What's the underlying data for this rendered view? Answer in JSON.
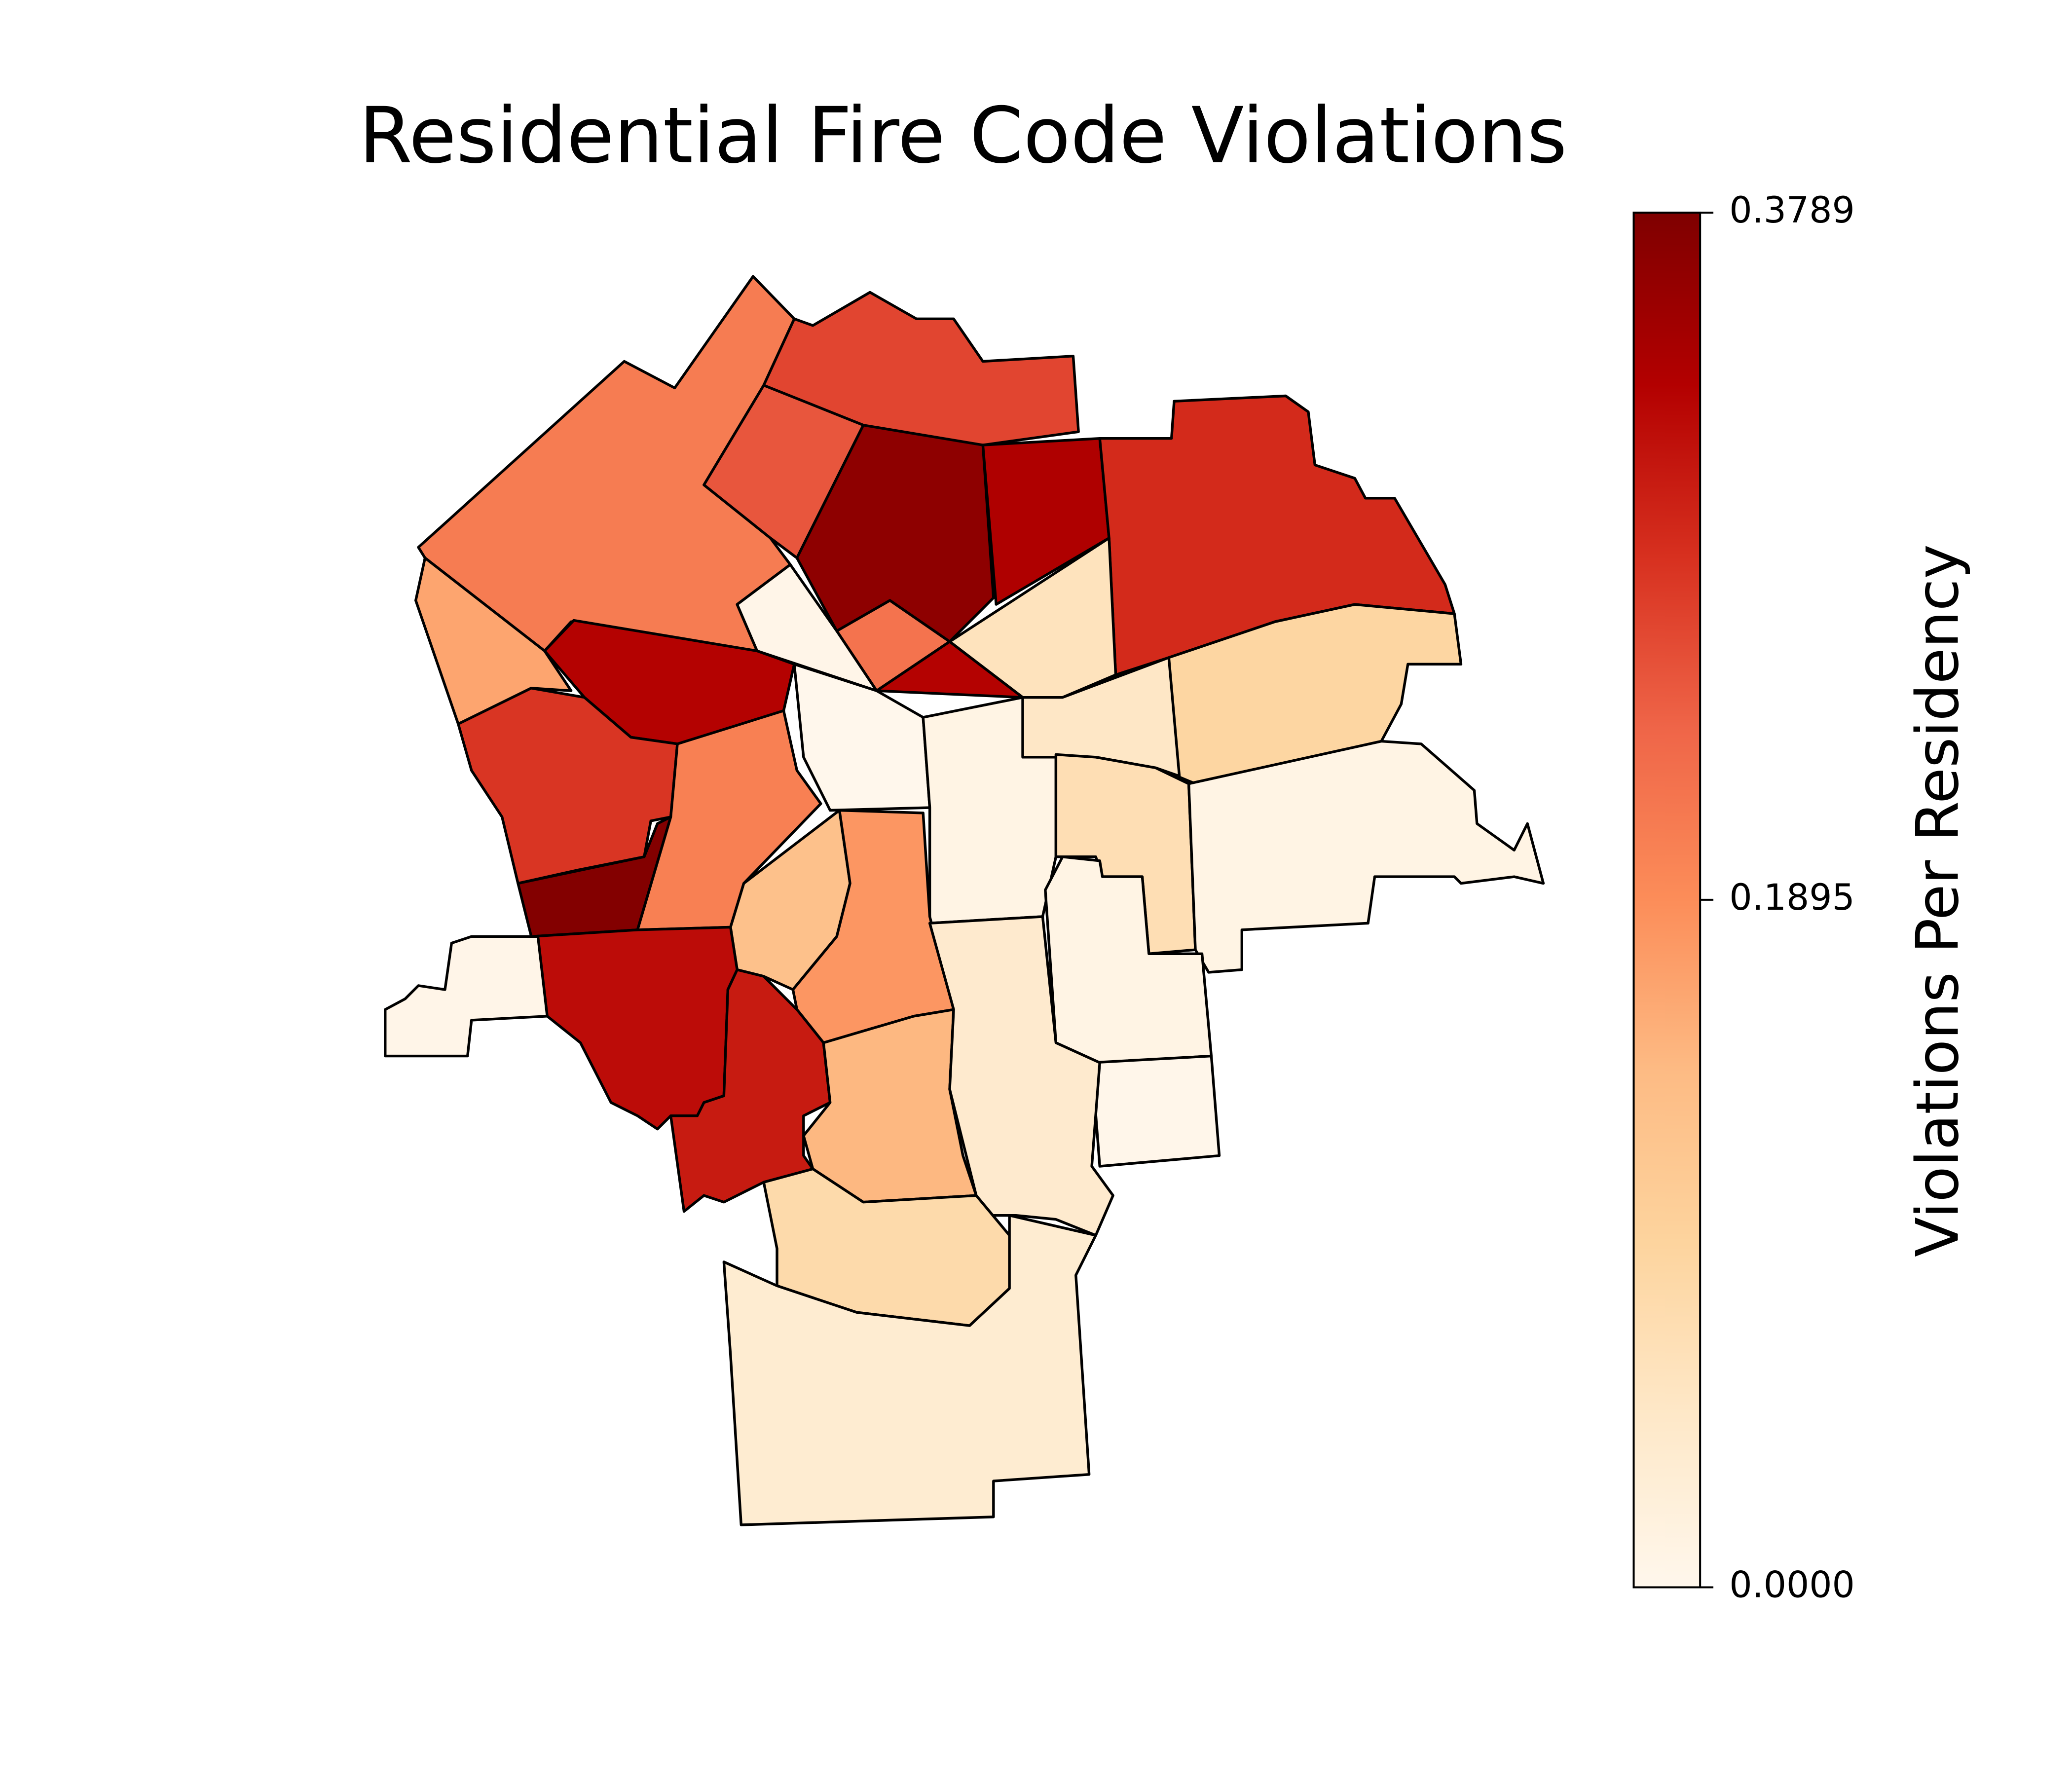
{
  "chart_data": {
    "type": "choropleth",
    "title": "Residential Fire Code Violations",
    "colorbar_label": "Violations Per Residency",
    "clim": [
      0,
      0.3789
    ],
    "cticks": [
      {
        "value": 0,
        "label": "0.0000"
      },
      0.1895,
      0.3789
    ],
    "colormap": "OrRd",
    "values": [
      0.21,
      0.265,
      0.25,
      0.365,
      0.335,
      0.29,
      0.06,
      0.22,
      0.33,
      0.005,
      0.33,
      0.165,
      0.28,
      0.375,
      0.205,
      0.0,
      0.01,
      0.05,
      0.09,
      0.07,
      0.01,
      0.01,
      0.003,
      0.13,
      0.18,
      0.32,
      0.305,
      0.145,
      0.04,
      0.08,
      0.035,
      0.005
    ]
  }
}
